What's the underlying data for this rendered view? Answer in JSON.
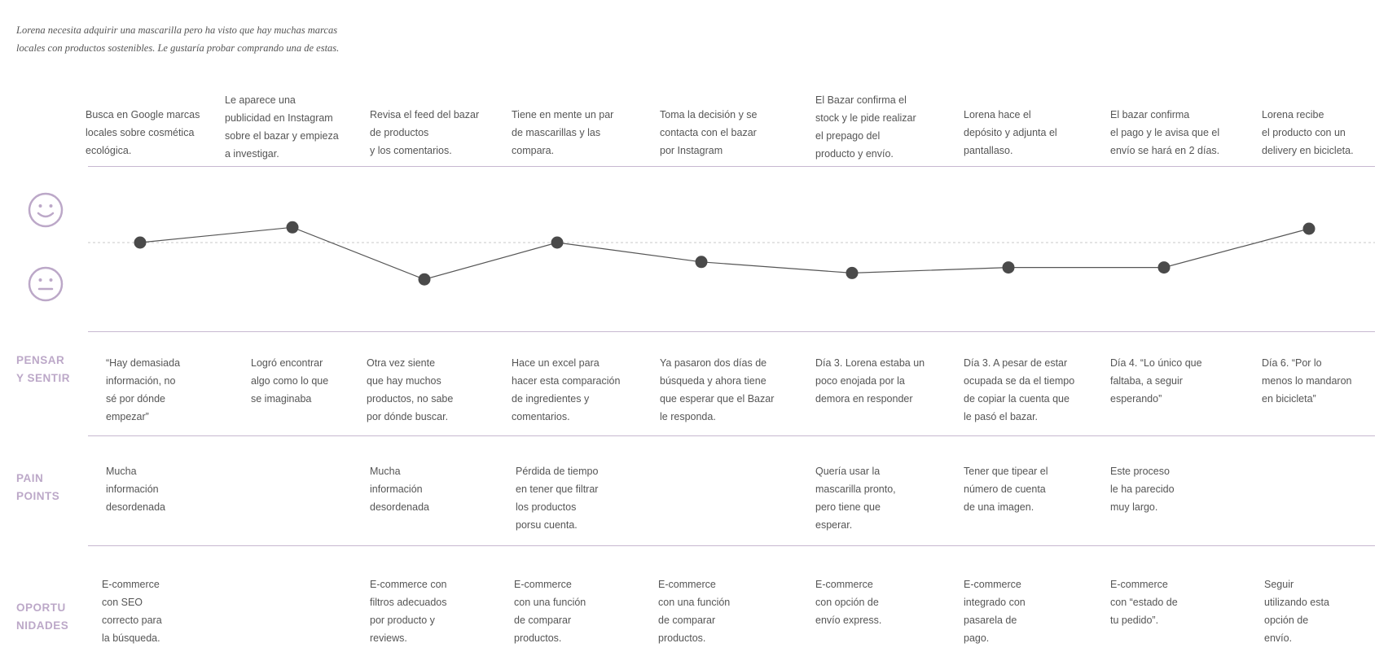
{
  "intro": {
    "line1": "Lorena necesita adquirir una mascarilla pero ha visto que hay muchas marcas",
    "line2": "locales con productos sostenibles. Le gustaría probar comprando una de estas."
  },
  "colors": {
    "accent": "#bca8c8",
    "line": "#555555",
    "dot": "#4a4a4a",
    "rule": "#c7b8d0"
  },
  "icons": {
    "happy": "smiley-face-icon",
    "neutral": "neutral-face-icon"
  },
  "steps": [
    {
      "action": [
        "Busca en Google marcas",
        "locales sobre cosmética",
        "ecológica."
      ]
    },
    {
      "action": [
        "Le aparece una",
        "publicidad en Instagram",
        "sobre el bazar y empieza",
        "a investigar."
      ]
    },
    {
      "action": [
        "Revisa el feed del bazar",
        "de productos",
        "y los comentarios."
      ]
    },
    {
      "action": [
        "Tiene en mente un par",
        "de mascarillas y las",
        "compara."
      ]
    },
    {
      "action": [
        "Toma la decisión y se",
        "contacta con el bazar",
        "por Instagram"
      ]
    },
    {
      "action": [
        "El Bazar confirma el",
        "stock y le pide realizar",
        "el prepago del",
        "producto y envío."
      ]
    },
    {
      "action": [
        "Lorena hace el",
        "depósito y adjunta el",
        "pantallaso."
      ]
    },
    {
      "action": [
        "El bazar confirma",
        "el pago y le avisa que el",
        "envío se hará en 2 días."
      ]
    },
    {
      "action": [
        "Lorena recibe",
        "el producto con un",
        "delivery en bicicleta."
      ]
    }
  ],
  "chart_data": {
    "type": "line",
    "x": [
      1,
      2,
      3,
      4,
      5,
      6,
      7,
      8,
      9
    ],
    "values": [
      0,
      0.55,
      -1.33,
      0,
      -0.7,
      -1.1,
      -0.9,
      -0.9,
      0.5
    ],
    "ylim": [
      -2,
      1.5
    ],
    "baseline": 0,
    "grid": false
  },
  "sections": {
    "think": {
      "label": [
        "PENSAR",
        "Y SENTIR"
      ],
      "cells": [
        [
          "“Hay demasiada",
          "información, no",
          "sé por dónde",
          "empezar”"
        ],
        [
          "Logró encontrar",
          "algo como lo que",
          "se imaginaba"
        ],
        [
          "Otra vez siente",
          "que hay muchos",
          "productos, no sabe",
          "por dónde buscar."
        ],
        [
          "Hace un excel para",
          "hacer esta comparación",
          "de ingredientes y",
          "comentarios."
        ],
        [
          "Ya pasaron dos días de",
          "búsqueda y ahora tiene",
          "que esperar que el Bazar",
          "le responda."
        ],
        [
          "Día 3. Lorena estaba un",
          "poco enojada por la",
          "demora en responder"
        ],
        [
          "Día 3. A pesar de estar",
          "ocupada se da el tiempo",
          "de copiar la cuenta que",
          "le pasó el bazar."
        ],
        [
          "Día 4. “Lo único que",
          "faltaba, a seguir",
          "esperando”"
        ],
        [
          "Día 6. “Por lo",
          "menos lo mandaron",
          "en bicicleta”"
        ]
      ]
    },
    "pain": {
      "label": [
        "PAIN",
        "POINTS"
      ],
      "cells": [
        [
          "Mucha",
          "información",
          "desordenada"
        ],
        [
          "Mucha",
          "información",
          "desordenada"
        ],
        [
          "Pérdida de tiempo",
          "en tener que filtrar",
          "los productos",
          "porsu cuenta."
        ],
        [
          "Quería usar la",
          "mascarilla pronto,",
          "pero tiene que",
          "esperar."
        ],
        [
          "Tener que tipear el",
          "número de cuenta",
          "de una imagen."
        ],
        [
          "Este proceso",
          "le ha parecido",
          "muy largo."
        ]
      ]
    },
    "opp": {
      "label": [
        "OPORTU",
        "NIDADES"
      ],
      "cells": [
        [
          "E-commerce",
          "con SEO",
          "correcto para",
          "la búsqueda."
        ],
        [
          "E-commerce con",
          "filtros adecuados",
          "por producto y",
          "reviews."
        ],
        [
          "E-commerce",
          "con una función",
          "de comparar",
          "productos."
        ],
        [
          "E-commerce",
          "con una función",
          "de comparar",
          "productos."
        ],
        [
          "E-commerce",
          "con opción de",
          "envío express."
        ],
        [
          "E-commerce",
          "integrado con",
          "pasarela de",
          "pago."
        ],
        [
          "E-commerce",
          "con “estado de",
          "tu pedido”."
        ],
        [
          "Seguir",
          "utilizando esta",
          "opción de",
          "envío."
        ]
      ]
    }
  }
}
